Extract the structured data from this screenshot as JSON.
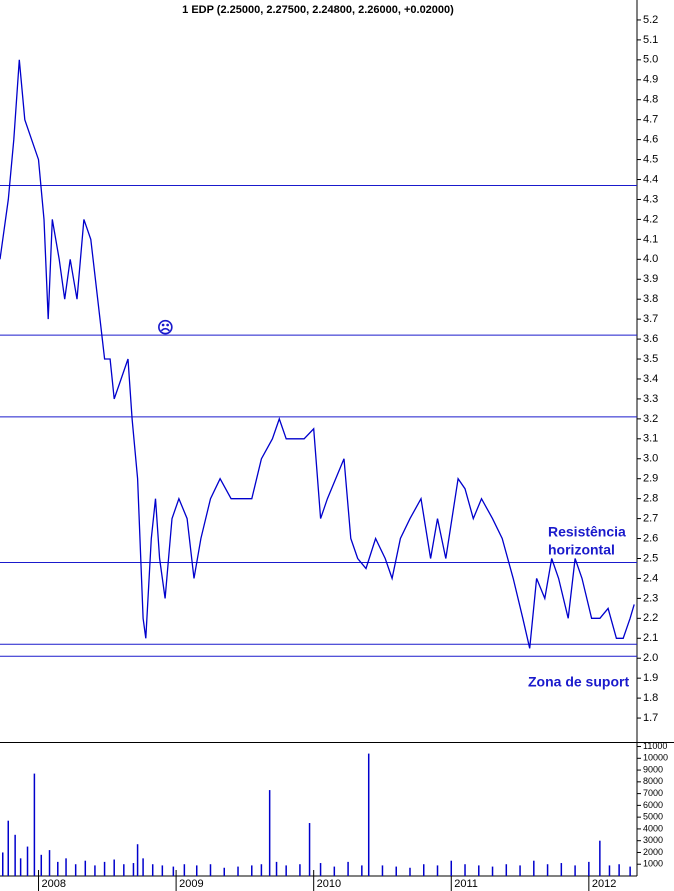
{
  "chart_data": [
    {
      "type": "line",
      "title": "1 EDP (2.25000, 2.27500, 2.24800, 2.26000, +0.02000)",
      "color": "#0000cc",
      "x": [
        2007.72,
        2007.78,
        2007.82,
        2007.86,
        2007.9,
        2007.95,
        2008.0,
        2008.04,
        2008.07,
        2008.1,
        2008.15,
        2008.19,
        2008.23,
        2008.28,
        2008.33,
        2008.38,
        2008.43,
        2008.48,
        2008.52,
        2008.55,
        2008.6,
        2008.65,
        2008.68,
        2008.72,
        2008.76,
        2008.78,
        2008.82,
        2008.85,
        2008.88,
        2008.92,
        2008.97,
        2009.02,
        2009.08,
        2009.13,
        2009.18,
        2009.25,
        2009.32,
        2009.4,
        2009.48,
        2009.55,
        2009.62,
        2009.7,
        2009.75,
        2009.8,
        2009.87,
        2009.93,
        2010.0,
        2010.05,
        2010.1,
        2010.16,
        2010.22,
        2010.27,
        2010.32,
        2010.38,
        2010.45,
        2010.52,
        2010.57,
        2010.63,
        2010.7,
        2010.78,
        2010.85,
        2010.9,
        2010.96,
        2011.05,
        2011.1,
        2011.16,
        2011.22,
        2011.3,
        2011.37,
        2011.45,
        2011.52,
        2011.57,
        2011.62,
        2011.68,
        2011.73,
        2011.78,
        2011.85,
        2011.9,
        2011.95,
        2012.02,
        2012.08,
        2012.14,
        2012.2,
        2012.25,
        2012.3,
        2012.33
      ],
      "values": [
        4.0,
        4.3,
        4.6,
        5.0,
        4.7,
        4.6,
        4.5,
        4.2,
        3.7,
        4.2,
        4.0,
        3.8,
        4.0,
        3.8,
        4.2,
        4.1,
        3.8,
        3.5,
        3.5,
        3.3,
        3.4,
        3.5,
        3.2,
        2.9,
        2.2,
        2.1,
        2.6,
        2.8,
        2.5,
        2.3,
        2.7,
        2.8,
        2.7,
        2.4,
        2.6,
        2.8,
        2.9,
        2.8,
        2.8,
        2.8,
        3.0,
        3.1,
        3.2,
        3.1,
        3.1,
        3.1,
        3.15,
        2.7,
        2.8,
        2.9,
        3.0,
        2.6,
        2.5,
        2.45,
        2.6,
        2.5,
        2.4,
        2.6,
        2.7,
        2.8,
        2.5,
        2.7,
        2.5,
        2.9,
        2.85,
        2.7,
        2.8,
        2.7,
        2.6,
        2.4,
        2.2,
        2.05,
        2.4,
        2.3,
        2.5,
        2.4,
        2.2,
        2.5,
        2.4,
        2.2,
        2.2,
        2.25,
        2.1,
        2.1,
        2.2,
        2.27
      ],
      "xlim": [
        2007.72,
        2012.35
      ],
      "xticks": [
        2008,
        2009,
        2010,
        2011,
        2012
      ],
      "ylim": [
        1.58,
        5.3
      ],
      "yticks": [
        1.7,
        1.8,
        1.9,
        {
          "value": 2,
          "label": "2.0"
        },
        2.1,
        2.2,
        2.3,
        2.4,
        2.5,
        2.6,
        2.7,
        2.8,
        2.9,
        {
          "value": 3,
          "label": "3.0"
        },
        3.1,
        3.2,
        3.3,
        3.4,
        3.5,
        3.6,
        3.7,
        3.8,
        3.9,
        {
          "value": 4,
          "label": "4.0"
        },
        4.1,
        4.2,
        4.3,
        4.4,
        4.5,
        4.6,
        4.7,
        4.8,
        4.9,
        {
          "value": 5,
          "label": "5.0"
        },
        5.1,
        5.2
      ],
      "hlines": [
        4.37,
        3.62,
        3.21,
        2.48,
        2.07,
        2.01
      ],
      "hline_color": "#1a1acc",
      "annotations": [
        "Resistência",
        "horizontal",
        "Zona de suport",
        "☹"
      ],
      "annotation_color": "#1a1acc"
    },
    {
      "type": "bar",
      "color": "#0000cc",
      "x": [
        2007.74,
        2007.78,
        2007.83,
        2007.87,
        2007.92,
        2007.97,
        2008.02,
        2008.08,
        2008.14,
        2008.2,
        2008.27,
        2008.34,
        2008.41,
        2008.48,
        2008.55,
        2008.62,
        2008.69,
        2008.72,
        2008.76,
        2008.83,
        2008.9,
        2008.98,
        2009.06,
        2009.15,
        2009.25,
        2009.35,
        2009.45,
        2009.55,
        2009.62,
        2009.68,
        2009.73,
        2009.8,
        2009.9,
        2009.97,
        2010.05,
        2010.15,
        2010.25,
        2010.35,
        2010.4,
        2010.5,
        2010.6,
        2010.7,
        2010.8,
        2010.9,
        2011.0,
        2011.1,
        2011.2,
        2011.3,
        2011.4,
        2011.5,
        2011.6,
        2011.7,
        2011.8,
        2011.9,
        2012.0,
        2012.08,
        2012.15,
        2012.22,
        2012.3
      ],
      "values": [
        2000,
        4700,
        3500,
        1500,
        2500,
        8700,
        1800,
        2200,
        1200,
        1500,
        1000,
        1300,
        900,
        1200,
        1400,
        1000,
        1100,
        2700,
        1500,
        1000,
        900,
        800,
        1000,
        900,
        1000,
        700,
        800,
        900,
        1000,
        7300,
        1200,
        900,
        1000,
        4500,
        1100,
        800,
        1200,
        900,
        10400,
        900,
        800,
        700,
        1000,
        900,
        1300,
        1000,
        900,
        800,
        1000,
        900,
        1300,
        1000,
        1100,
        900,
        1200,
        3000,
        900,
        1000,
        800
      ],
      "xlim": [
        2007.72,
        2012.35
      ],
      "ylim": [
        0,
        11300
      ],
      "yticks": [
        1000,
        2000,
        3000,
        4000,
        5000,
        6000,
        7000,
        8000,
        9000,
        10000,
        11000
      ]
    }
  ]
}
